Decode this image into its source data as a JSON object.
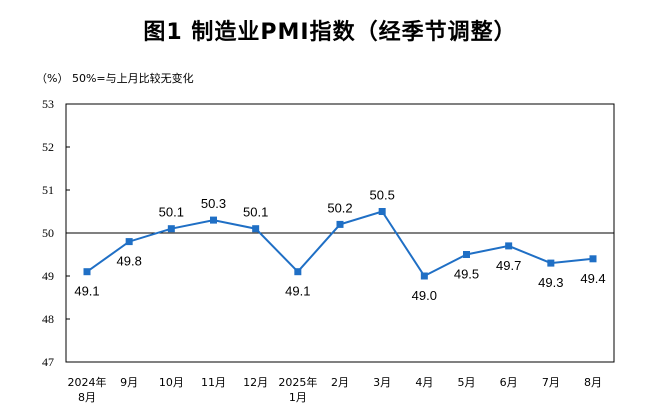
{
  "title": "图1  制造业PMI指数（经季节调整）",
  "unit_note": "（%）  50%=与上月比较无变化",
  "chart_data": {
    "type": "line",
    "title": "图1  制造业PMI指数（经季节调整）",
    "ylabel": "（%）",
    "note": "50%=与上月比较无变化",
    "ylim": [
      47,
      53
    ],
    "yticks": [
      47,
      48,
      49,
      50,
      51,
      52,
      53
    ],
    "reference_line": 50,
    "categories": [
      [
        "2024年",
        "8月"
      ],
      [
        "9月"
      ],
      [
        "10月"
      ],
      [
        "11月"
      ],
      [
        "12月"
      ],
      [
        "2025年",
        "1月"
      ],
      [
        "2月"
      ],
      [
        "3月"
      ],
      [
        "4月"
      ],
      [
        "5月"
      ],
      [
        "6月"
      ],
      [
        "7月"
      ],
      [
        "8月"
      ]
    ],
    "values": [
      49.1,
      49.8,
      50.1,
      50.3,
      50.1,
      49.1,
      50.2,
      50.5,
      49.0,
      49.5,
      49.7,
      49.3,
      49.4
    ],
    "labels": [
      "49.1",
      "49.8",
      "50.1",
      "50.3",
      "50.1",
      "49.1",
      "50.2",
      "50.5",
      "49.0",
      "49.5",
      "49.7",
      "49.3",
      "49.4"
    ],
    "label_positions": [
      "below",
      "below",
      "above",
      "above",
      "above",
      "below",
      "above",
      "above",
      "below",
      "below",
      "below",
      "below",
      "below"
    ],
    "line_color": "#1f6fc5",
    "grid": false
  }
}
